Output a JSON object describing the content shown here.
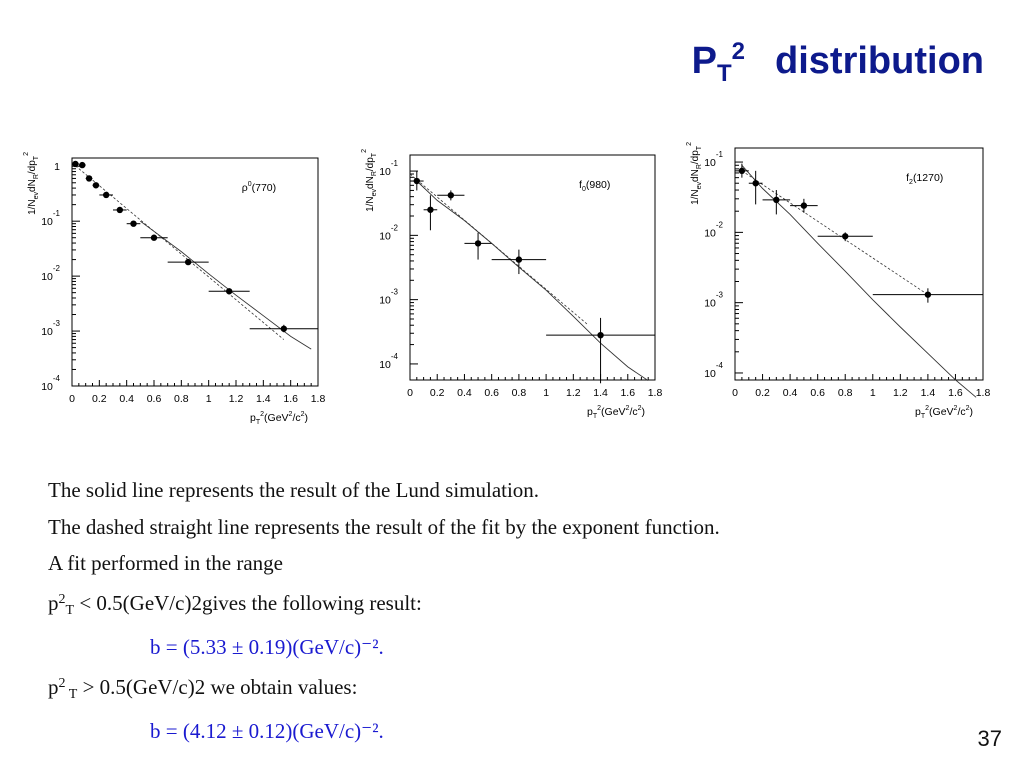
{
  "title": {
    "p": "P",
    "sub": "T",
    "sup": "2",
    "word": "distribution"
  },
  "page_number": "37",
  "text": {
    "line1": "The solid line represents the result of the Lund simulation.",
    "line2": "The dashed straight line represents the result of the fit by the exponent function.",
    "line3": "A fit performed in the range",
    "line4_p": "p",
    "line4_sup": "2",
    "line4_sub": "T",
    "line4_rest": " < 0.5(GeV/c)2gives the following result:",
    "line5": "b = (5.33 ± 0.19)(GeV/c)⁻².",
    "line6_p": "p",
    "line6_sup": "2",
    "line6_sub": " T",
    "line6_rest": " > 0.5(GeV/c)2 we obtain values:",
    "line7": "b = (4.12 ± 0.12)(GeV/c)⁻²."
  },
  "chart_data": [
    {
      "type": "scatter",
      "annotation": {
        "base": "ρ",
        "sup": "0",
        "rest": "(770)"
      },
      "ylabel": {
        "a": "1/N",
        "b": "ev",
        "c": "dN",
        "d": "R",
        "e": "/dp",
        "f": "T",
        "g": "2"
      },
      "xlabel": {
        "a": "p",
        "b": "T",
        "c": "2",
        "d": "(GeV",
        "e": "2",
        "f": "/c",
        "g": "2",
        "h": ")"
      },
      "xlim": [
        0,
        1.8
      ],
      "ylim_log10": [
        -4,
        0.15
      ],
      "log_y": true,
      "x_ticks": [
        "0",
        "0.2",
        "0.4",
        "0.6",
        "0.8",
        "1",
        "1.2",
        "1.4",
        "1.6",
        "1.8"
      ],
      "y_ticks": [
        {
          "log": 0,
          "base": "1",
          "exp": ""
        },
        {
          "log": -1,
          "base": "10",
          "exp": "-1"
        },
        {
          "log": -2,
          "base": "10",
          "exp": "-2"
        },
        {
          "log": -3,
          "base": "10",
          "exp": "-3"
        },
        {
          "log": -4,
          "base": "10",
          "exp": "-4"
        }
      ],
      "points": [
        {
          "x": 0.025,
          "y": 1.1,
          "xerr": 0.025,
          "ylo": 1.0,
          "yhi": 1.2
        },
        {
          "x": 0.075,
          "y": 1.05,
          "xerr": 0.025,
          "ylo": 0.95,
          "yhi": 1.15
        },
        {
          "x": 0.125,
          "y": 0.6,
          "xerr": 0.025,
          "ylo": 0.55,
          "yhi": 0.66
        },
        {
          "x": 0.175,
          "y": 0.45,
          "xerr": 0.025,
          "ylo": 0.41,
          "yhi": 0.5
        },
        {
          "x": 0.25,
          "y": 0.3,
          "xerr": 0.05,
          "ylo": 0.27,
          "yhi": 0.33
        },
        {
          "x": 0.35,
          "y": 0.16,
          "xerr": 0.05,
          "ylo": 0.145,
          "yhi": 0.175
        },
        {
          "x": 0.45,
          "y": 0.09,
          "xerr": 0.05,
          "ylo": 0.08,
          "yhi": 0.1
        },
        {
          "x": 0.6,
          "y": 0.05,
          "xerr": 0.1,
          "ylo": 0.045,
          "yhi": 0.055
        },
        {
          "x": 0.85,
          "y": 0.018,
          "xerr": 0.15,
          "ylo": 0.016,
          "yhi": 0.02
        },
        {
          "x": 1.15,
          "y": 0.0053,
          "xerr": 0.15,
          "ylo": 0.0047,
          "yhi": 0.006
        },
        {
          "x": 1.55,
          "y": 0.0011,
          "xerr": 0.25,
          "ylo": 0.00095,
          "yhi": 0.0013
        }
      ],
      "lund_curve": [
        [
          0.5,
          0.1
        ],
        [
          0.8,
          0.028
        ],
        [
          1.0,
          0.011
        ],
        [
          1.2,
          0.0045
        ],
        [
          1.4,
          0.0019
        ],
        [
          1.6,
          0.0008
        ],
        [
          1.75,
          0.00047
        ]
      ],
      "fit_line": [
        [
          0.0,
          1.15
        ],
        [
          1.55,
          0.0007
        ]
      ]
    },
    {
      "type": "scatter",
      "annotation": {
        "base": "f",
        "sub": "0",
        "rest": "(980)"
      },
      "ylabel": {
        "a": "1/N",
        "b": "ev",
        "c": "dN",
        "d": "R",
        "e": "/dp",
        "f": "T",
        "g": "2"
      },
      "xlabel": {
        "a": "p",
        "b": "T",
        "c": "2",
        "d": "(GeV",
        "e": "2",
        "f": "/c",
        "g": "2",
        "h": ")"
      },
      "xlim": [
        0,
        1.8
      ],
      "ylim_log10": [
        -4.25,
        -0.75
      ],
      "log_y": true,
      "x_ticks": [
        "0",
        "0.2",
        "0.4",
        "0.6",
        "0.8",
        "1",
        "1.2",
        "1.4",
        "1.6",
        "1.8"
      ],
      "y_ticks": [
        {
          "log": -1,
          "base": "10",
          "exp": "-1"
        },
        {
          "log": -2,
          "base": "10",
          "exp": "-2"
        },
        {
          "log": -3,
          "base": "10",
          "exp": "-3"
        },
        {
          "log": -4,
          "base": "10",
          "exp": "-4"
        }
      ],
      "points": [
        {
          "x": 0.05,
          "y": 0.07,
          "xerr": 0.05,
          "ylo": 0.05,
          "yhi": 0.1
        },
        {
          "x": 0.15,
          "y": 0.025,
          "xerr": 0.05,
          "ylo": 0.012,
          "yhi": 0.042
        },
        {
          "x": 0.3,
          "y": 0.042,
          "xerr": 0.1,
          "ylo": 0.035,
          "yhi": 0.05
        },
        {
          "x": 0.5,
          "y": 0.0075,
          "xerr": 0.1,
          "ylo": 0.0042,
          "yhi": 0.011
        },
        {
          "x": 0.8,
          "y": 0.0042,
          "xerr": 0.2,
          "ylo": 0.0025,
          "yhi": 0.006
        },
        {
          "x": 1.4,
          "y": 0.00028,
          "xerr": 0.4,
          "ylo": 5e-05,
          "yhi": 0.00052
        }
      ],
      "lund_curve": [
        [
          0.05,
          0.07
        ],
        [
          0.2,
          0.035
        ],
        [
          0.4,
          0.017
        ],
        [
          0.6,
          0.0075
        ],
        [
          0.8,
          0.0032
        ],
        [
          1.0,
          0.0014
        ],
        [
          1.2,
          0.00055
        ],
        [
          1.4,
          0.00021
        ],
        [
          1.6,
          9e-05
        ],
        [
          1.75,
          5.5e-05
        ]
      ],
      "fit_line": [
        [
          0.0,
          0.09
        ],
        [
          1.3,
          0.00042
        ]
      ]
    },
    {
      "type": "scatter",
      "annotation": {
        "base": "f",
        "sub": "2",
        "rest": "(1270)"
      },
      "ylabel": {
        "a": "1/N",
        "b": "ev",
        "c": "dN",
        "d": "R",
        "e": "/dp",
        "f": "T",
        "g": "2"
      },
      "xlabel": {
        "a": "p",
        "b": "T",
        "c": "2",
        "d": "(GeV",
        "e": "2",
        "f": "/c",
        "g": "2",
        "h": ")"
      },
      "xlim": [
        0,
        1.8
      ],
      "ylim_log10": [
        -4.1,
        -0.8
      ],
      "log_y": true,
      "x_ticks": [
        "0",
        "0.2",
        "0.4",
        "0.6",
        "0.8",
        "1",
        "1.2",
        "1.4",
        "1.6",
        "1.8"
      ],
      "y_ticks": [
        {
          "log": -1,
          "base": "10",
          "exp": "-1"
        },
        {
          "log": -2,
          "base": "10",
          "exp": "-2"
        },
        {
          "log": -3,
          "base": "10",
          "exp": "-3"
        },
        {
          "log": -4,
          "base": "10",
          "exp": "-4"
        }
      ],
      "points": [
        {
          "x": 0.05,
          "y": 0.075,
          "xerr": 0.05,
          "ylo": 0.06,
          "yhi": 0.095
        },
        {
          "x": 0.15,
          "y": 0.05,
          "xerr": 0.05,
          "ylo": 0.025,
          "yhi": 0.075
        },
        {
          "x": 0.3,
          "y": 0.029,
          "xerr": 0.1,
          "ylo": 0.018,
          "yhi": 0.04
        },
        {
          "x": 0.5,
          "y": 0.024,
          "xerr": 0.1,
          "ylo": 0.019,
          "yhi": 0.03
        },
        {
          "x": 0.8,
          "y": 0.0088,
          "xerr": 0.2,
          "ylo": 0.0075,
          "yhi": 0.01
        },
        {
          "x": 1.4,
          "y": 0.0013,
          "xerr": 0.4,
          "ylo": 0.001,
          "yhi": 0.0016
        }
      ],
      "lund_curve": [
        [
          0.05,
          0.09
        ],
        [
          0.2,
          0.042
        ],
        [
          0.4,
          0.018
        ],
        [
          0.6,
          0.007
        ],
        [
          0.8,
          0.0028
        ],
        [
          1.0,
          0.0011
        ],
        [
          1.2,
          0.00045
        ],
        [
          1.4,
          0.00019
        ],
        [
          1.6,
          8e-05
        ],
        [
          1.75,
          4.5e-05
        ]
      ],
      "fit_line": [
        [
          0.05,
          0.075
        ],
        [
          1.4,
          0.0013
        ]
      ]
    }
  ]
}
